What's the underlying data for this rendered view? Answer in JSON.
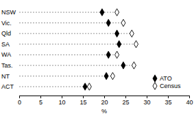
{
  "chart_data": {
    "type": "dot",
    "orientation": "horizontal",
    "categories": [
      "NSW",
      "Vic.",
      "Qld",
      "SA",
      "WA",
      "Tas.",
      "NT",
      "ACT"
    ],
    "series": [
      {
        "name": "ATO",
        "color": "#000000",
        "marker": "diamond",
        "values": [
          19.5,
          21,
          23,
          23.5,
          21,
          24.5,
          20.5,
          15.5
        ]
      },
      {
        "name": "Census",
        "color": "#000000",
        "marker": "open-diamond",
        "values": [
          23,
          24.5,
          26.5,
          27.5,
          23,
          27,
          22,
          16.5
        ]
      }
    ],
    "xlabel": "%",
    "xlim": [
      0,
      40
    ],
    "xticks": [
      0,
      5,
      10,
      15,
      20,
      25,
      30,
      35,
      40
    ],
    "legend": "lower right"
  }
}
